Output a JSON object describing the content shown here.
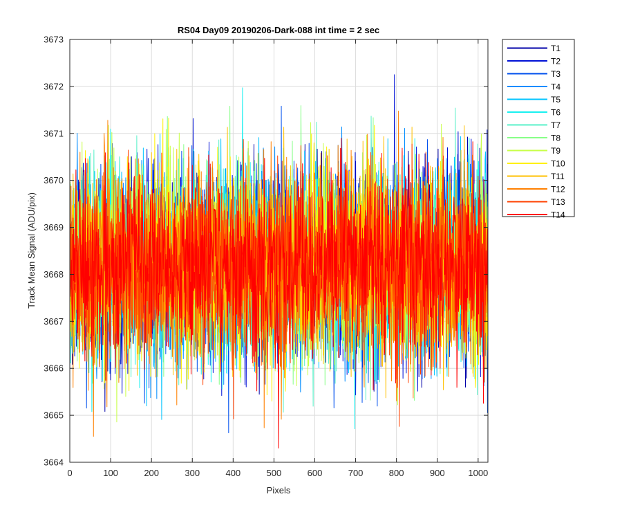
{
  "chart_data": {
    "type": "line",
    "title": "RS04 Day09 20190206-Dark-088 int time = 2 sec",
    "xlabel": "Pixels",
    "ylabel": "Track Mean Signal (ADU/pix)",
    "xlim": [
      0,
      1024
    ],
    "ylim": [
      3664,
      3673
    ],
    "xticks": [
      0,
      100,
      200,
      300,
      400,
      500,
      600,
      700,
      800,
      900,
      1000
    ],
    "yticks": [
      3664,
      3665,
      3666,
      3667,
      3668,
      3669,
      3670,
      3671,
      3672,
      3673
    ],
    "grid": true,
    "legend_position": "outside-right",
    "x_points": 1024,
    "noise": {
      "mean": 3668.2,
      "sd": 1.0,
      "min": 3664.3,
      "max": 3672.25
    },
    "series": [
      {
        "name": "T1",
        "color": "#0000A8"
      },
      {
        "name": "T2",
        "color": "#0011D6"
      },
      {
        "name": "T3",
        "color": "#0050EE"
      },
      {
        "name": "T4",
        "color": "#008CFF"
      },
      {
        "name": "T5",
        "color": "#00C4FF"
      },
      {
        "name": "T6",
        "color": "#18F0F0"
      },
      {
        "name": "T7",
        "color": "#58F0C8"
      },
      {
        "name": "T8",
        "color": "#88FF88"
      },
      {
        "name": "T9",
        "color": "#C8FF48"
      },
      {
        "name": "T10",
        "color": "#FFF000"
      },
      {
        "name": "T11",
        "color": "#FFC000"
      },
      {
        "name": "T12",
        "color": "#FF8000"
      },
      {
        "name": "T13",
        "color": "#FF4000"
      },
      {
        "name": "T14",
        "color": "#FF0000"
      }
    ]
  }
}
